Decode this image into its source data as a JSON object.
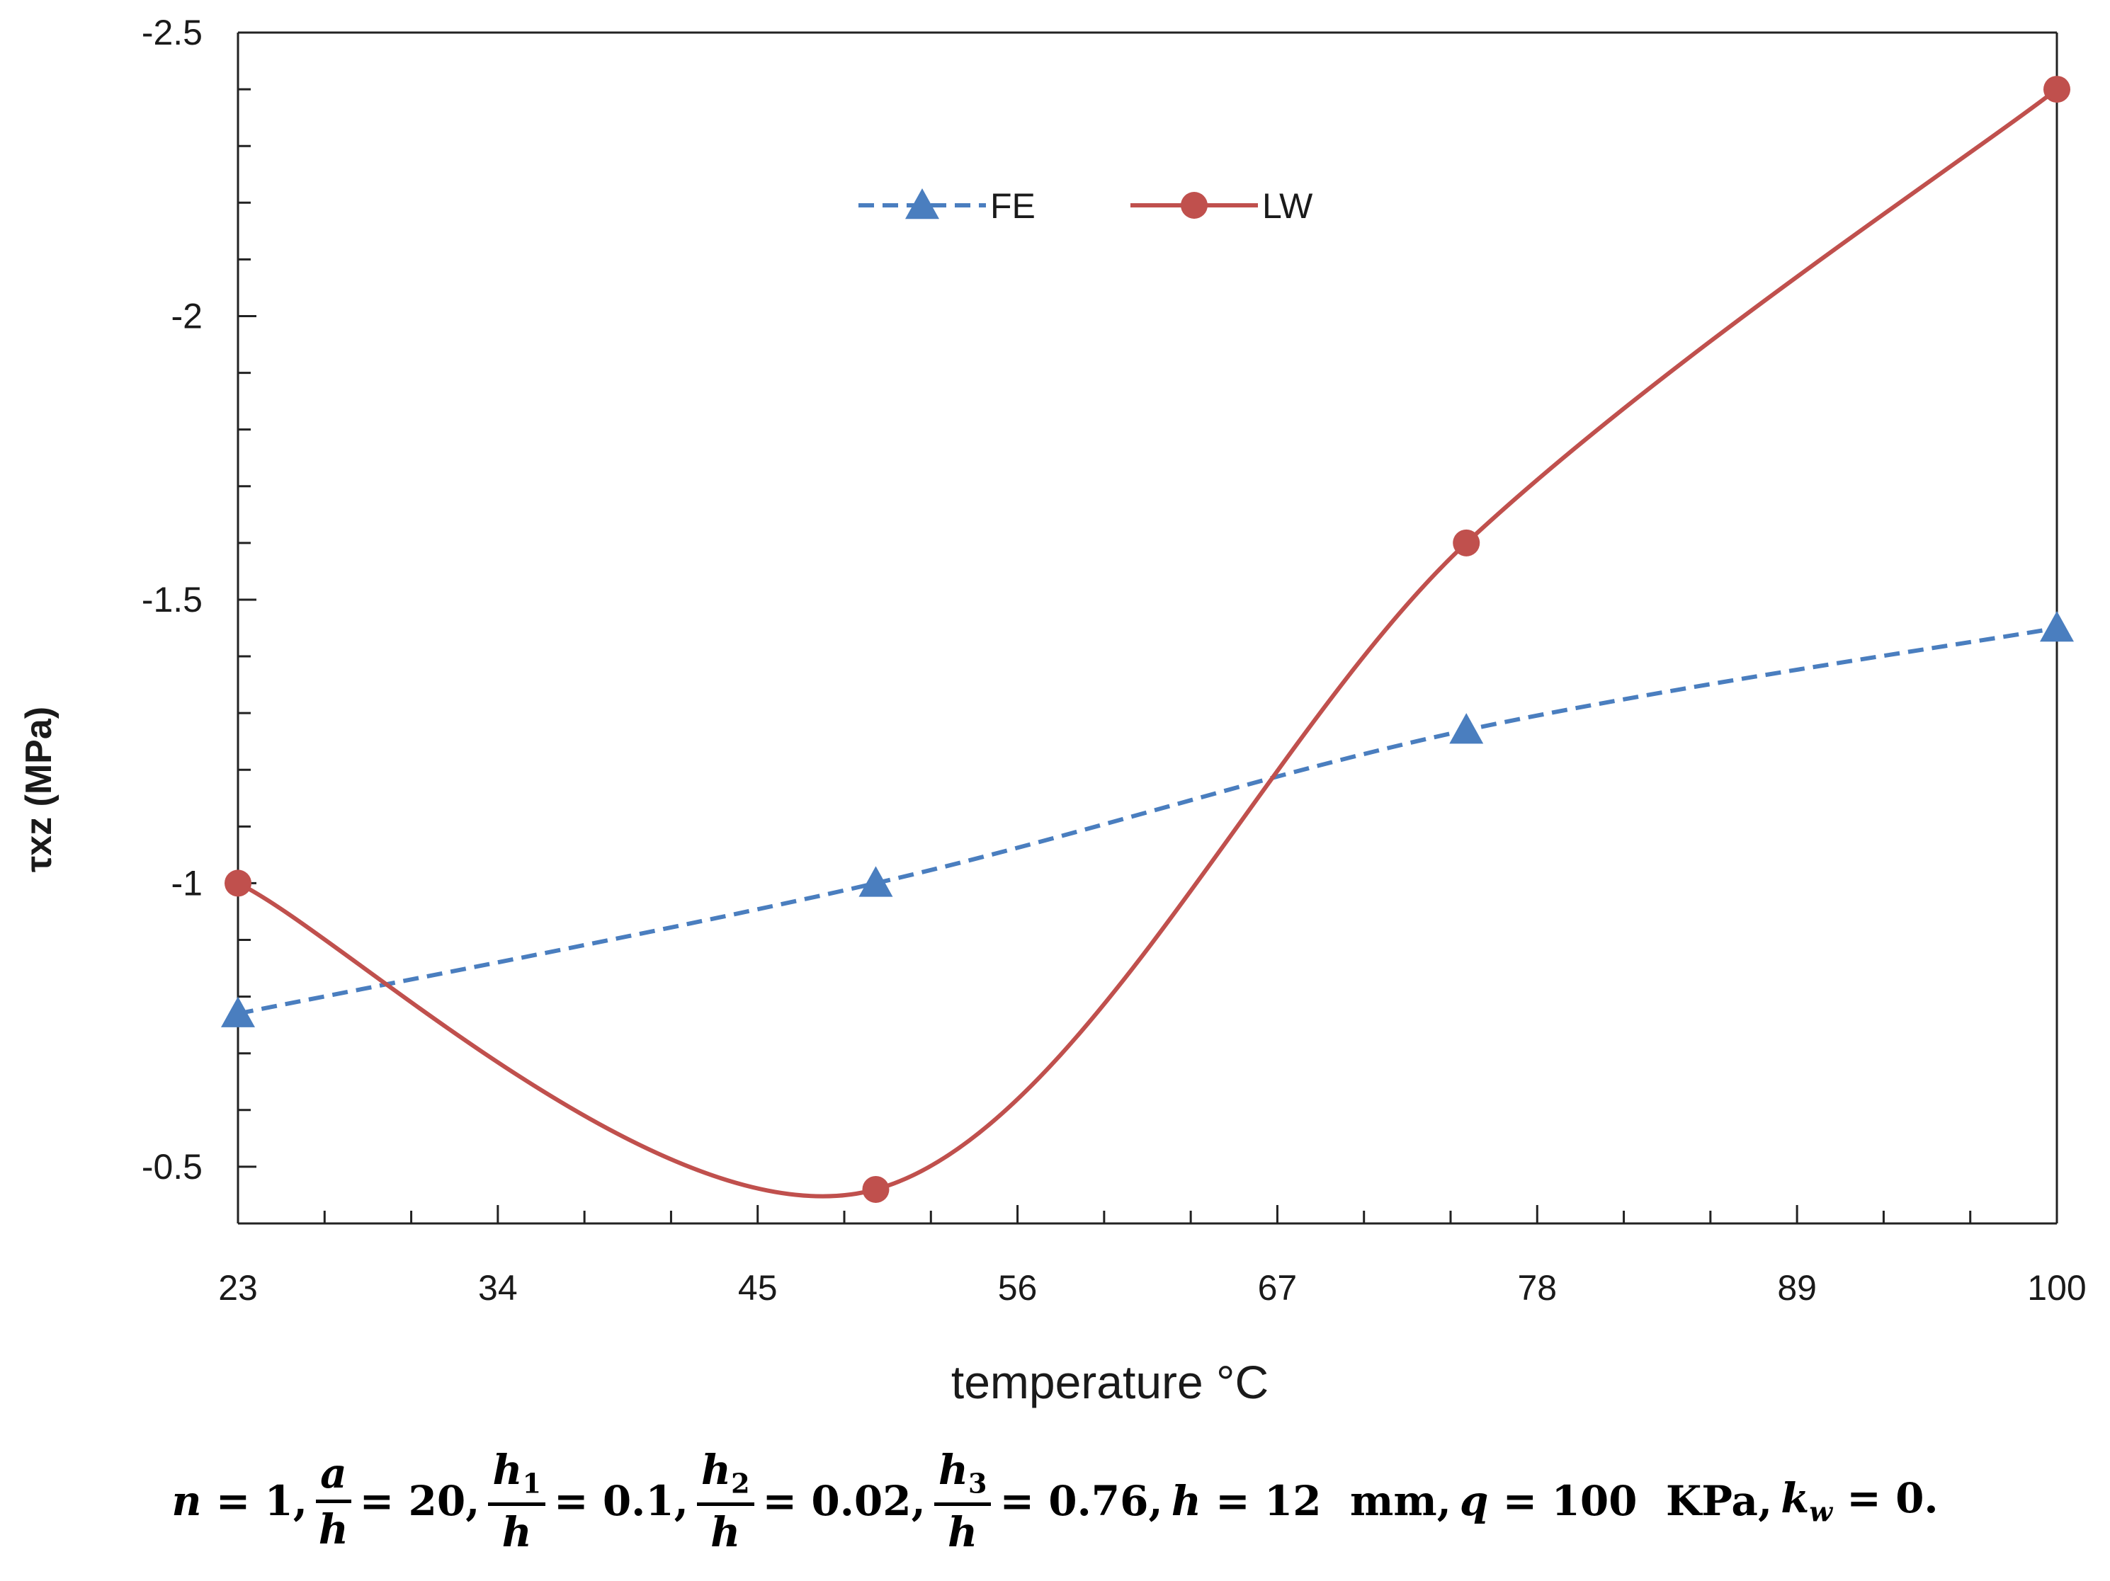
{
  "chart_data": {
    "type": "line",
    "title": "",
    "xlabel": "temperature °C",
    "ylabel": "τxz (MPa)",
    "xlim": [
      23,
      100
    ],
    "ylim": [
      -0.4,
      -2.5
    ],
    "x_ticks": [
      23,
      34,
      45,
      56,
      67,
      78,
      89,
      100
    ],
    "x_tick_labels": [
      "23",
      "34",
      "45",
      "56",
      "67",
      "78",
      "89",
      "100"
    ],
    "y_ticks": [
      -0.5,
      -1,
      -1.5,
      -2,
      -2.5
    ],
    "y_tick_labels": [
      "-0.5",
      "-1",
      "-1.5",
      "-2",
      "-2.5"
    ],
    "series": [
      {
        "name": "FE",
        "color": "#4a7ebf",
        "line_style": "dashed",
        "marker": "triangle",
        "x": [
          23,
          50,
          75,
          100
        ],
        "values": [
          -0.77,
          -1.0,
          -1.27,
          -1.45
        ]
      },
      {
        "name": "LW",
        "color": "#c0504d",
        "line_style": "solid",
        "marker": "circle",
        "x": [
          23,
          50,
          75,
          100
        ],
        "values": [
          -1.0,
          -0.46,
          -1.6,
          -2.4
        ]
      }
    ],
    "legend_position": "top-center",
    "grid": false
  },
  "caption": {
    "n_label": "n",
    "n_value": "1",
    "a_num": "a",
    "a_den": "h",
    "a_value": "20",
    "h1_num": "h",
    "h1_sub": "1",
    "h1_den": "h",
    "h1_value": "0.1",
    "h2_num": "h",
    "h2_sub": "2",
    "h2_den": "h",
    "h2_value": "0.02",
    "h3_num": "h",
    "h3_sub": "3",
    "h3_den": "h",
    "h3_value": "0.76",
    "h_label": "h",
    "h_value": "12",
    "h_unit": "mm",
    "q_label": "q",
    "q_value": "100",
    "q_unit": "KPa",
    "kw_label": "k",
    "kw_sub": "w",
    "kw_value": "0."
  }
}
